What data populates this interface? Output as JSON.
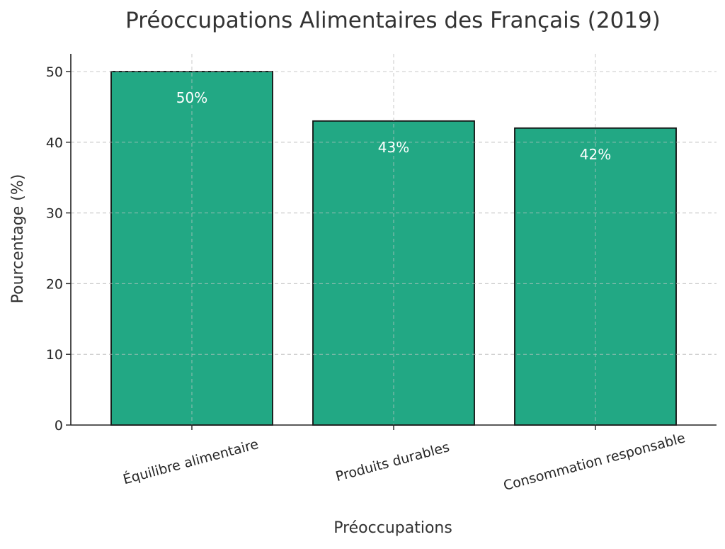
{
  "chart_data": {
    "type": "bar",
    "title": "Préoccupations Alimentaires des Français (2019)",
    "xlabel": "Préoccupations",
    "ylabel": "Pourcentage (%)",
    "categories": [
      "Équilibre alimentaire",
      "Produits durables",
      "Consommation responsable"
    ],
    "values": [
      50,
      43,
      42
    ],
    "data_labels": [
      "50%",
      "43%",
      "42%"
    ],
    "ylim": [
      0,
      52.5
    ],
    "yticks": [
      0,
      10,
      20,
      30,
      40,
      50
    ],
    "grid": true,
    "legend": "none"
  },
  "colors": {
    "bar": "#22a884",
    "bar_edge": "#111111",
    "grid": "#c8c8c8",
    "text": "#333333"
  }
}
